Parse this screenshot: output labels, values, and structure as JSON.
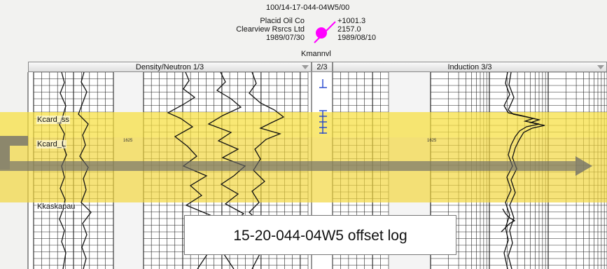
{
  "header": {
    "well_id": "100/14-17-044-04W5/00",
    "operator": "Placid Oil Co",
    "licensee": "Clearview Rsrcs Ltd",
    "date_left": "1989/07/30",
    "elevation": "+1001.3",
    "total_depth": "2157.0",
    "date_right": "1989/08/10",
    "formation": "Kmannvl",
    "well_symbol_color": "#ff00ff"
  },
  "tracks": [
    {
      "label": "Density/Neutron 1/3"
    },
    {
      "label": "2/3"
    },
    {
      "label": "Induction 3/3"
    }
  ],
  "formation_tops": [
    "Kcard_ss",
    "Kcard_L",
    "Kkaskapau"
  ],
  "depth_marks": [
    "1625",
    "1625"
  ],
  "zones": {
    "highlight_color": "#ffe44d",
    "arrow_color": "#555555"
  },
  "caption": "15-20-044-04W5 offset log"
}
